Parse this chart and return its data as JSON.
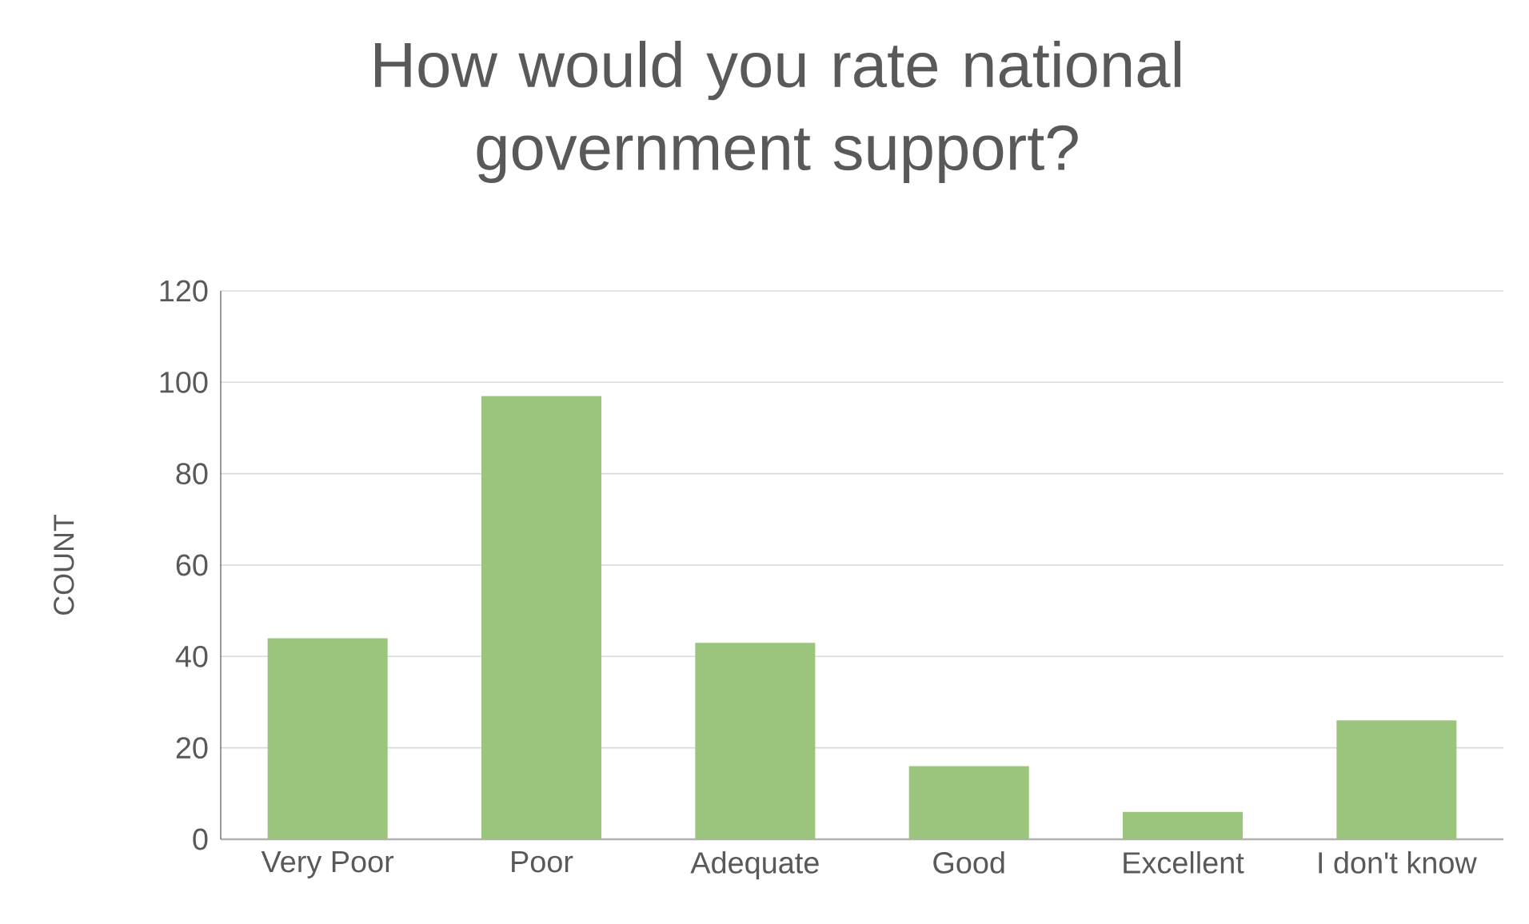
{
  "chart_data": {
    "type": "bar",
    "title": "How would you rate national government support?",
    "ylabel": "COUNT",
    "categories": [
      "Very Poor",
      "Poor",
      "Adequate",
      "Good",
      "Excellent",
      "I don't know"
    ],
    "values": [
      44,
      97,
      43,
      16,
      6,
      26
    ],
    "color": "#9bc47c",
    "ylim": [
      0,
      120
    ],
    "yticks": [
      0,
      20,
      40,
      60,
      80,
      100,
      120
    ],
    "grid": "y"
  }
}
